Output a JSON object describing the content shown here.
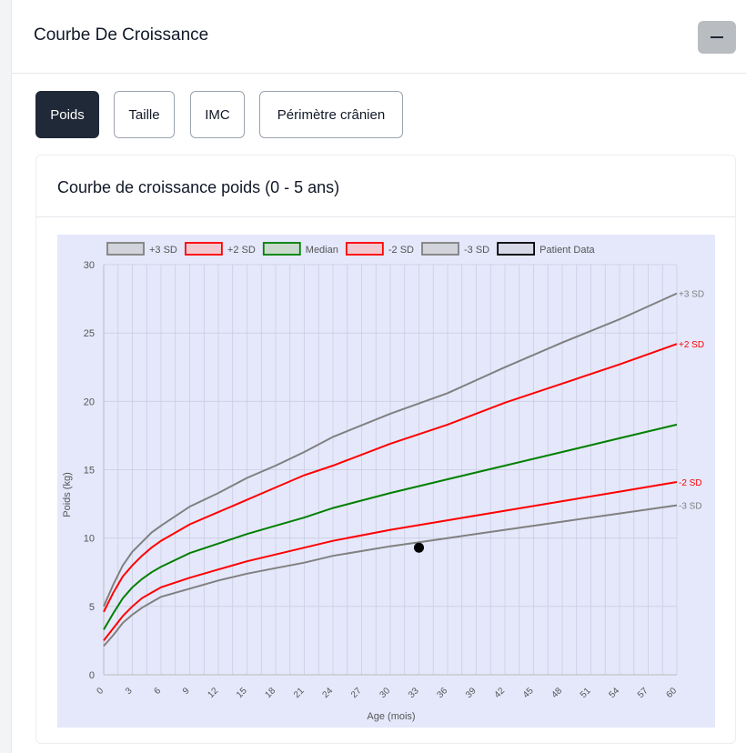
{
  "panel": {
    "title": "Courbe De Croissance"
  },
  "tabs": [
    {
      "label": "Poids",
      "active": true
    },
    {
      "label": "Taille",
      "active": false
    },
    {
      "label": "IMC",
      "active": false
    },
    {
      "label": "Périmètre crânien",
      "active": false
    }
  ],
  "card": {
    "title": "Courbe de croissance poids (0 - 5 ans)"
  },
  "colors": {
    "plot_bg": "#e5e8fb",
    "sd3": "#808080",
    "sd2": "#ff0000",
    "median": "#008000",
    "patient": "#000000",
    "active_tab": "#1f2937",
    "collapse_button": "#b9bcc1"
  },
  "chart_data": {
    "type": "line",
    "xlabel": "Age (mois)",
    "ylabel": "Poids (kg)",
    "xlim": [
      0,
      60
    ],
    "ylim": [
      0,
      30
    ],
    "x_ticks": [
      0,
      3,
      6,
      9,
      12,
      15,
      18,
      21,
      24,
      27,
      30,
      33,
      36,
      39,
      42,
      45,
      48,
      51,
      54,
      57,
      60
    ],
    "y_ticks": [
      0,
      5,
      10,
      15,
      20,
      25,
      30
    ],
    "grid": true,
    "legend_position": "top",
    "x": [
      0,
      1,
      2,
      3,
      4,
      5,
      6,
      9,
      12,
      15,
      18,
      21,
      24,
      30,
      36,
      42,
      48,
      54,
      60
    ],
    "series": [
      {
        "name": "+3 SD",
        "end_label": "+3 SD",
        "color": "#808080",
        "values": [
          5.0,
          6.6,
          8.0,
          9.0,
          9.7,
          10.4,
          10.9,
          12.3,
          13.3,
          14.4,
          15.3,
          16.3,
          17.4,
          19.1,
          20.6,
          22.5,
          24.3,
          26.0,
          27.9
        ]
      },
      {
        "name": "+2 SD",
        "end_label": "+2 SD",
        "color": "#ff0000",
        "values": [
          4.6,
          6.0,
          7.2,
          8.0,
          8.7,
          9.3,
          9.8,
          11.0,
          11.9,
          12.8,
          13.7,
          14.6,
          15.3,
          16.9,
          18.3,
          19.9,
          21.3,
          22.7,
          24.2
        ]
      },
      {
        "name": "Median",
        "end_label": "",
        "color": "#008000",
        "values": [
          3.3,
          4.5,
          5.6,
          6.4,
          7.0,
          7.5,
          7.9,
          8.9,
          9.6,
          10.3,
          10.9,
          11.5,
          12.2,
          13.3,
          14.3,
          15.3,
          16.3,
          17.3,
          18.3
        ]
      },
      {
        "name": "-2 SD",
        "end_label": "-2 SD",
        "color": "#ff0000",
        "values": [
          2.5,
          3.4,
          4.3,
          5.0,
          5.6,
          6.0,
          6.4,
          7.1,
          7.7,
          8.3,
          8.8,
          9.3,
          9.8,
          10.6,
          11.3,
          12.0,
          12.7,
          13.4,
          14.1
        ]
      },
      {
        "name": "-3 SD",
        "end_label": "-3 SD",
        "color": "#808080",
        "values": [
          2.1,
          2.9,
          3.8,
          4.4,
          4.9,
          5.3,
          5.7,
          6.3,
          6.9,
          7.4,
          7.8,
          8.2,
          8.7,
          9.4,
          10.0,
          10.6,
          11.2,
          11.8,
          12.4
        ]
      }
    ],
    "patient": {
      "name": "Patient Data",
      "points": [
        {
          "x": 33,
          "y": 9.3
        }
      ]
    }
  }
}
